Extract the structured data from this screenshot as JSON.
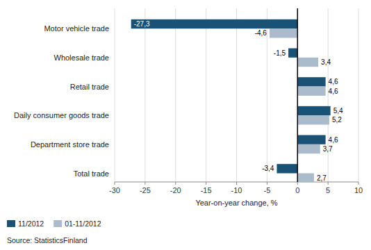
{
  "chart_data": {
    "type": "bar",
    "orientation": "horizontal",
    "categories": [
      "Total trade",
      "Department store trade",
      "Daily consumer goods trade",
      "Retail trade",
      "Wholesale trade",
      "Motor vehicle trade"
    ],
    "series": [
      {
        "name": "11/2012",
        "color": "#1A5276",
        "values": [
          -3.4,
          4.6,
          5.4,
          4.6,
          -1.5,
          -27.3
        ],
        "value_labels": [
          "-3,4",
          "4,6",
          "5,4",
          "4,6",
          "-1,5",
          "-27,3"
        ]
      },
      {
        "name": "01-11/2012",
        "color": "#AABBCC",
        "values": [
          2.7,
          3.7,
          5.2,
          4.6,
          3.4,
          -4.6
        ],
        "value_labels": [
          "2,7",
          "3,7",
          "5,2",
          "4,6",
          "3,4",
          "-4,6"
        ]
      }
    ],
    "xlim": [
      -30,
      10
    ],
    "xticks": [
      -30,
      -25,
      -20,
      -15,
      -10,
      -5,
      0,
      5,
      10
    ],
    "xlabel": "Year-on-year change, %",
    "grid": true,
    "legend": "lower left",
    "data_labels": true,
    "annotations": [
      "Source: StatisticsFinland"
    ]
  }
}
